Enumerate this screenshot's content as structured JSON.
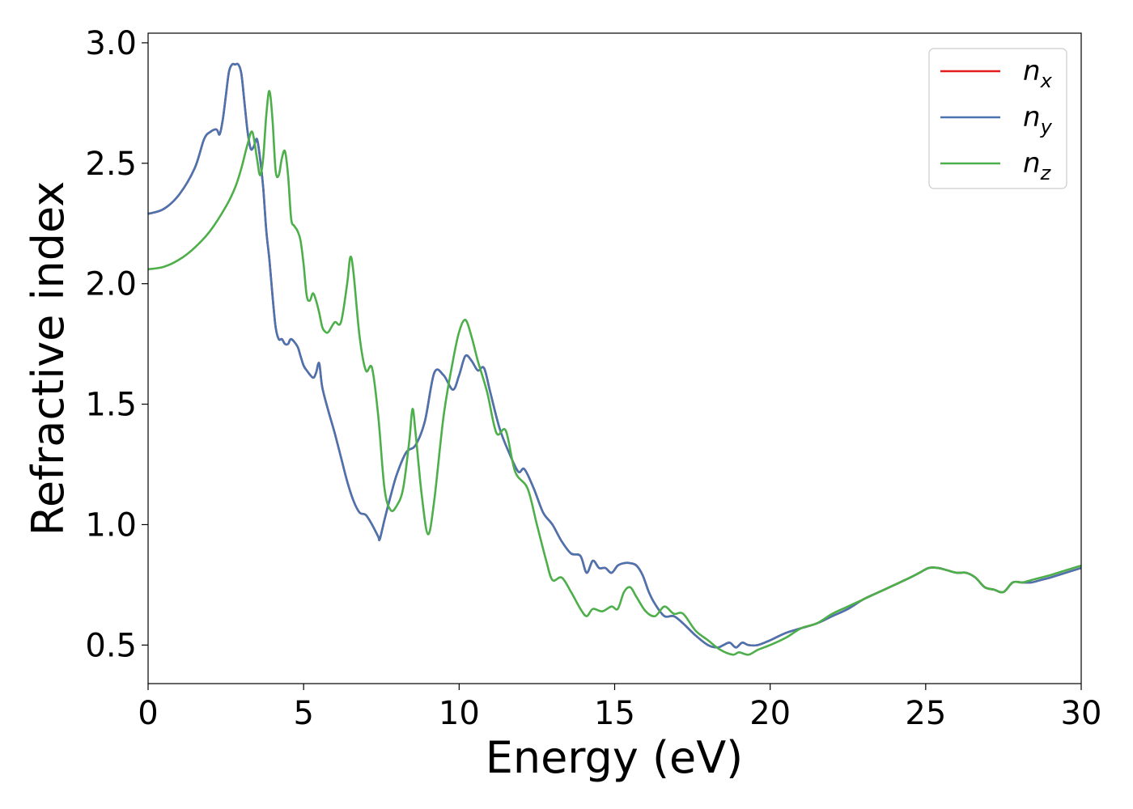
{
  "chart_data": {
    "type": "line",
    "title": "",
    "xlabel": "Energy (eV)",
    "ylabel": "Refractive index",
    "xlim": [
      0,
      30
    ],
    "ylim": [
      0.34,
      3.04
    ],
    "xticks": [
      0,
      5,
      10,
      15,
      20,
      25,
      30
    ],
    "xtick_labels": [
      "0",
      "5",
      "10",
      "15",
      "20",
      "25",
      "30"
    ],
    "yticks": [
      0.5,
      1.0,
      1.5,
      2.0,
      2.5,
      3.0
    ],
    "ytick_labels": [
      "0.5",
      "1.0",
      "1.5",
      "2.0",
      "2.5",
      "3.0"
    ],
    "grid": false,
    "legend_position": "top-right",
    "series": [
      {
        "name": "n_x",
        "label_base": "n",
        "label_sub": "x",
        "color": "#e41a1c",
        "x": [
          0,
          0.5,
          1.0,
          1.5,
          1.8,
          2.0,
          2.2,
          2.3,
          2.4,
          2.5,
          2.6,
          2.7,
          2.8,
          2.9,
          3.0,
          3.1,
          3.2,
          3.3,
          3.4,
          3.5,
          3.6,
          3.7,
          3.8,
          3.9,
          4.0,
          4.1,
          4.2,
          4.3,
          4.4,
          4.5,
          4.6,
          4.8,
          4.9,
          5.0,
          5.1,
          5.3,
          5.4,
          5.5,
          5.6,
          5.8,
          6.0,
          6.2,
          6.4,
          6.6,
          6.8,
          7.0,
          7.2,
          7.4,
          7.45,
          7.6,
          7.8,
          8.0,
          8.3,
          8.6,
          8.9,
          9.2,
          9.5,
          9.8,
          10.0,
          10.2,
          10.4,
          10.6,
          10.8,
          11.0,
          11.3,
          11.6,
          11.9,
          12.1,
          12.4,
          12.7,
          13.0,
          13.3,
          13.6,
          13.9,
          14.1,
          14.3,
          14.5,
          14.7,
          14.9,
          15.1,
          15.3,
          15.5,
          15.7,
          15.9,
          16.1,
          16.3,
          16.6,
          16.9,
          17.2,
          17.6,
          18.0,
          18.3,
          18.5,
          18.7,
          18.9,
          19.1,
          19.3,
          19.6,
          20.0,
          20.5,
          21.0,
          21.5,
          22.0,
          22.5,
          23.0,
          23.5,
          24.0,
          24.5,
          24.8,
          25.1,
          25.4,
          25.7,
          26.0,
          26.3,
          26.6,
          26.9,
          27.2,
          27.5,
          27.8,
          28.1,
          28.4,
          28.7,
          29.0,
          29.5,
          30.0
        ],
        "y": [
          2.29,
          2.31,
          2.37,
          2.48,
          2.6,
          2.63,
          2.64,
          2.62,
          2.68,
          2.78,
          2.88,
          2.91,
          2.91,
          2.91,
          2.87,
          2.75,
          2.63,
          2.56,
          2.57,
          2.6,
          2.52,
          2.4,
          2.22,
          2.1,
          1.95,
          1.82,
          1.77,
          1.77,
          1.75,
          1.75,
          1.77,
          1.74,
          1.7,
          1.66,
          1.64,
          1.61,
          1.63,
          1.67,
          1.57,
          1.47,
          1.38,
          1.28,
          1.18,
          1.1,
          1.05,
          1.04,
          1.0,
          0.95,
          0.94,
          1.02,
          1.12,
          1.21,
          1.3,
          1.33,
          1.43,
          1.63,
          1.62,
          1.56,
          1.62,
          1.7,
          1.68,
          1.64,
          1.65,
          1.55,
          1.4,
          1.3,
          1.22,
          1.23,
          1.15,
          1.05,
          1.0,
          0.93,
          0.88,
          0.87,
          0.8,
          0.85,
          0.82,
          0.82,
          0.8,
          0.83,
          0.84,
          0.84,
          0.83,
          0.79,
          0.72,
          0.67,
          0.62,
          0.62,
          0.59,
          0.54,
          0.5,
          0.49,
          0.5,
          0.51,
          0.49,
          0.51,
          0.5,
          0.5,
          0.52,
          0.55,
          0.57,
          0.59,
          0.62,
          0.65,
          0.69,
          0.72,
          0.75,
          0.78,
          0.8,
          0.82,
          0.82,
          0.81,
          0.8,
          0.8,
          0.78,
          0.74,
          0.73,
          0.72,
          0.76,
          0.76,
          0.76,
          0.77,
          0.78,
          0.8,
          0.82
        ]
      },
      {
        "name": "n_y",
        "label_base": "n",
        "label_sub": "y",
        "color": "#4a74b0",
        "x": [
          0,
          0.5,
          1.0,
          1.5,
          1.8,
          2.0,
          2.2,
          2.3,
          2.4,
          2.5,
          2.6,
          2.7,
          2.8,
          2.9,
          3.0,
          3.1,
          3.2,
          3.3,
          3.4,
          3.5,
          3.6,
          3.7,
          3.8,
          3.9,
          4.0,
          4.1,
          4.2,
          4.3,
          4.4,
          4.5,
          4.6,
          4.8,
          4.9,
          5.0,
          5.1,
          5.3,
          5.4,
          5.5,
          5.6,
          5.8,
          6.0,
          6.2,
          6.4,
          6.6,
          6.8,
          7.0,
          7.2,
          7.4,
          7.45,
          7.6,
          7.8,
          8.0,
          8.3,
          8.6,
          8.9,
          9.2,
          9.5,
          9.8,
          10.0,
          10.2,
          10.4,
          10.6,
          10.8,
          11.0,
          11.3,
          11.6,
          11.9,
          12.1,
          12.4,
          12.7,
          13.0,
          13.3,
          13.6,
          13.9,
          14.1,
          14.3,
          14.5,
          14.7,
          14.9,
          15.1,
          15.3,
          15.5,
          15.7,
          15.9,
          16.1,
          16.3,
          16.6,
          16.9,
          17.2,
          17.6,
          18.0,
          18.3,
          18.5,
          18.7,
          18.9,
          19.1,
          19.3,
          19.6,
          20.0,
          20.5,
          21.0,
          21.5,
          22.0,
          22.5,
          23.0,
          23.5,
          24.0,
          24.5,
          24.8,
          25.1,
          25.4,
          25.7,
          26.0,
          26.3,
          26.6,
          26.9,
          27.2,
          27.5,
          27.8,
          28.1,
          28.4,
          28.7,
          29.0,
          29.5,
          30.0
        ],
        "y": [
          2.29,
          2.31,
          2.37,
          2.48,
          2.6,
          2.63,
          2.64,
          2.62,
          2.68,
          2.78,
          2.88,
          2.91,
          2.91,
          2.91,
          2.87,
          2.75,
          2.63,
          2.56,
          2.57,
          2.6,
          2.52,
          2.4,
          2.22,
          2.1,
          1.95,
          1.82,
          1.77,
          1.77,
          1.75,
          1.75,
          1.77,
          1.74,
          1.7,
          1.66,
          1.64,
          1.61,
          1.63,
          1.67,
          1.57,
          1.47,
          1.38,
          1.28,
          1.18,
          1.1,
          1.05,
          1.04,
          1.0,
          0.95,
          0.94,
          1.02,
          1.12,
          1.21,
          1.3,
          1.33,
          1.43,
          1.63,
          1.62,
          1.56,
          1.62,
          1.7,
          1.68,
          1.64,
          1.65,
          1.55,
          1.4,
          1.3,
          1.22,
          1.23,
          1.15,
          1.05,
          1.0,
          0.93,
          0.88,
          0.87,
          0.8,
          0.85,
          0.82,
          0.82,
          0.8,
          0.83,
          0.84,
          0.84,
          0.83,
          0.79,
          0.72,
          0.67,
          0.62,
          0.62,
          0.59,
          0.54,
          0.5,
          0.49,
          0.5,
          0.51,
          0.49,
          0.51,
          0.5,
          0.5,
          0.52,
          0.55,
          0.57,
          0.59,
          0.62,
          0.65,
          0.69,
          0.72,
          0.75,
          0.78,
          0.8,
          0.82,
          0.82,
          0.81,
          0.8,
          0.8,
          0.78,
          0.74,
          0.73,
          0.72,
          0.76,
          0.76,
          0.76,
          0.77,
          0.78,
          0.8,
          0.82
        ]
      },
      {
        "name": "n_z",
        "label_base": "n",
        "label_sub": "z",
        "color": "#4daf4a",
        "x": [
          0,
          0.5,
          1.0,
          1.5,
          2.0,
          2.5,
          2.8,
          3.0,
          3.2,
          3.35,
          3.5,
          3.6,
          3.7,
          3.8,
          3.9,
          4.0,
          4.1,
          4.2,
          4.3,
          4.4,
          4.5,
          4.6,
          4.7,
          4.8,
          4.9,
          5.0,
          5.1,
          5.2,
          5.3,
          5.4,
          5.5,
          5.6,
          5.7,
          5.8,
          6.0,
          6.2,
          6.4,
          6.5,
          6.6,
          6.8,
          7.0,
          7.2,
          7.4,
          7.6,
          7.8,
          8.0,
          8.2,
          8.4,
          8.5,
          8.6,
          8.8,
          9.0,
          9.2,
          9.5,
          9.8,
          10.0,
          10.2,
          10.4,
          10.6,
          10.9,
          11.2,
          11.5,
          11.8,
          12.2,
          12.5,
          12.8,
          13.0,
          13.3,
          13.6,
          13.9,
          14.1,
          14.3,
          14.6,
          14.9,
          15.1,
          15.3,
          15.5,
          15.7,
          16.0,
          16.3,
          16.6,
          16.9,
          17.2,
          17.6,
          18.0,
          18.4,
          18.8,
          19.0,
          19.3,
          19.6,
          20.0,
          20.5,
          21.0,
          21.5,
          22.0,
          22.5,
          23.0,
          23.5,
          24.0,
          24.5,
          24.8,
          25.1,
          25.4,
          25.7,
          26.0,
          26.3,
          26.6,
          26.9,
          27.2,
          27.5,
          27.8,
          28.1,
          28.4,
          28.7,
          29.0,
          29.5,
          30.0
        ],
        "y": [
          2.06,
          2.07,
          2.1,
          2.15,
          2.22,
          2.32,
          2.4,
          2.48,
          2.58,
          2.63,
          2.52,
          2.45,
          2.52,
          2.7,
          2.8,
          2.68,
          2.47,
          2.45,
          2.52,
          2.55,
          2.45,
          2.27,
          2.24,
          2.22,
          2.18,
          2.08,
          1.95,
          1.93,
          1.96,
          1.93,
          1.88,
          1.82,
          1.8,
          1.8,
          1.84,
          1.84,
          2.0,
          2.11,
          2.05,
          1.78,
          1.64,
          1.65,
          1.45,
          1.15,
          1.06,
          1.08,
          1.15,
          1.35,
          1.48,
          1.38,
          1.12,
          0.96,
          1.1,
          1.45,
          1.68,
          1.8,
          1.85,
          1.78,
          1.68,
          1.55,
          1.38,
          1.39,
          1.22,
          1.15,
          1.0,
          0.85,
          0.77,
          0.78,
          0.72,
          0.65,
          0.62,
          0.65,
          0.64,
          0.66,
          0.65,
          0.72,
          0.74,
          0.7,
          0.64,
          0.62,
          0.66,
          0.63,
          0.63,
          0.56,
          0.52,
          0.48,
          0.46,
          0.47,
          0.46,
          0.48,
          0.5,
          0.53,
          0.57,
          0.59,
          0.63,
          0.66,
          0.69,
          0.72,
          0.75,
          0.78,
          0.8,
          0.82,
          0.82,
          0.81,
          0.8,
          0.8,
          0.78,
          0.74,
          0.73,
          0.72,
          0.76,
          0.76,
          0.77,
          0.78,
          0.79,
          0.81,
          0.83
        ]
      }
    ]
  }
}
